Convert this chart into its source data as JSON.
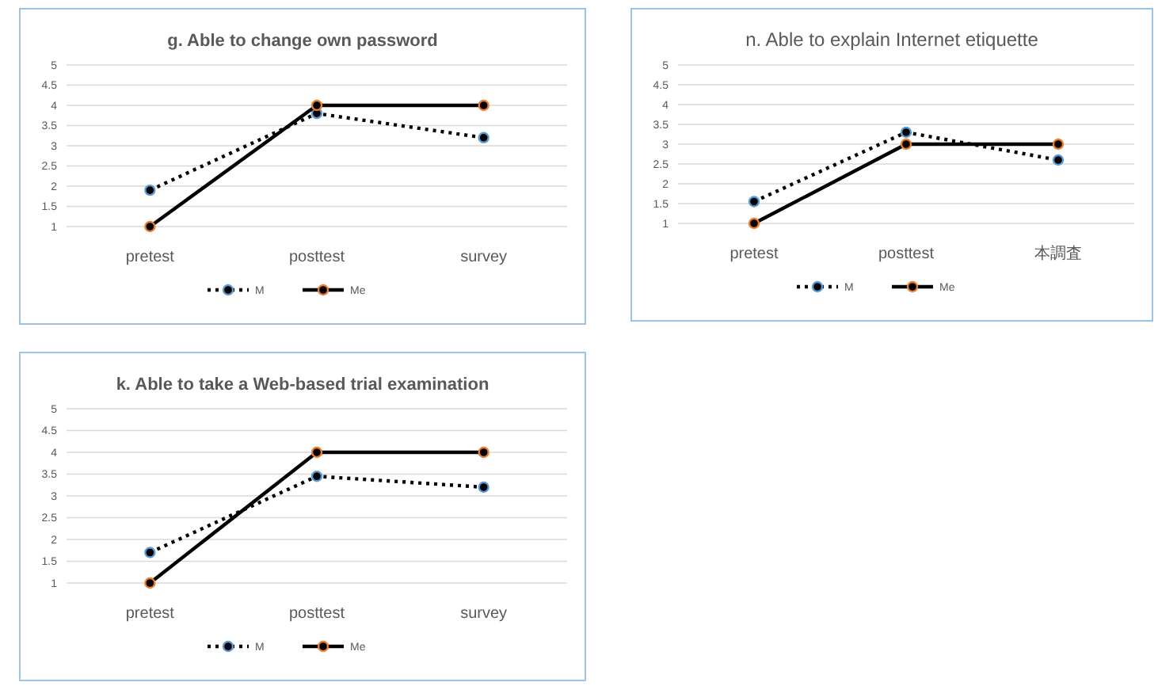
{
  "chart_data": [
    {
      "type": "line",
      "title": "g. Able to change own password",
      "categories": [
        "pretest",
        "posttest",
        "survey"
      ],
      "ylim": [
        1,
        5
      ],
      "yticks": [
        1,
        1.5,
        2,
        2.5,
        3,
        3.5,
        4,
        4.5,
        5
      ],
      "grid": "y",
      "legend": "bottom",
      "marker": "circle",
      "series": [
        {
          "name": "M",
          "color": "#000000",
          "line_style": "dotted",
          "values": [
            1.9,
            3.8,
            3.2
          ]
        },
        {
          "name": "Me",
          "color": "#000000",
          "line_style": "solid",
          "values": [
            1,
            4,
            4
          ]
        }
      ]
    },
    {
      "type": "line",
      "title": "n. Able to explain Internet etiquette",
      "categories": [
        "pretest",
        "posttest",
        "本調査"
      ],
      "ylim": [
        1,
        5
      ],
      "yticks": [
        1,
        1.5,
        2,
        2.5,
        3,
        3.5,
        4,
        4.5,
        5
      ],
      "grid": "y",
      "legend": "bottom",
      "marker": "circle",
      "series": [
        {
          "name": "M",
          "color": "#000000",
          "line_style": "dotted",
          "values": [
            1.55,
            3.3,
            2.6
          ]
        },
        {
          "name": "Me",
          "color": "#000000",
          "line_style": "solid",
          "values": [
            1,
            3,
            3
          ]
        }
      ]
    },
    {
      "type": "line",
      "title": "k. Able to take a Web-based trial examination",
      "categories": [
        "pretest",
        "posttest",
        "survey"
      ],
      "ylim": [
        1,
        5
      ],
      "yticks": [
        1,
        1.5,
        2,
        2.5,
        3,
        3.5,
        4,
        4.5,
        5
      ],
      "grid": "y",
      "legend": "bottom",
      "marker": "circle",
      "series": [
        {
          "name": "M",
          "color": "#000000",
          "line_style": "dotted",
          "values": [
            1.7,
            3.45,
            3.2
          ]
        },
        {
          "name": "Me",
          "color": "#000000",
          "line_style": "solid",
          "values": [
            1,
            4,
            4
          ]
        }
      ]
    }
  ]
}
